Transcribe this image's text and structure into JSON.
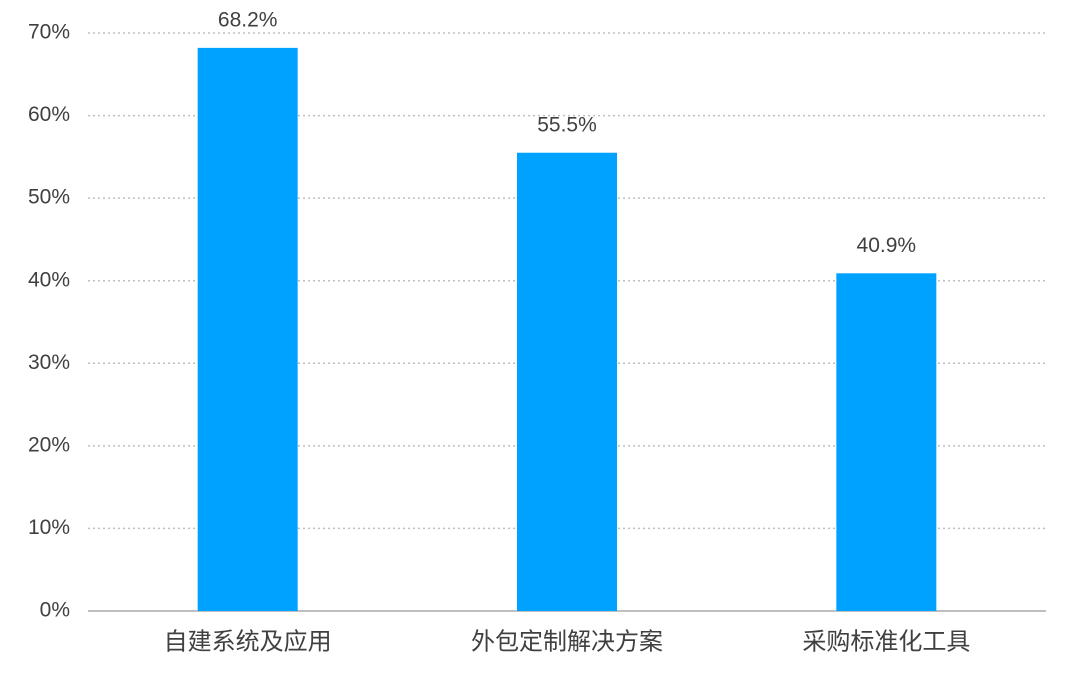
{
  "chart_data": {
    "type": "bar",
    "categories": [
      "自建系统及应用",
      "外包定制解决方案",
      "采购标准化工具"
    ],
    "values": [
      68.2,
      55.5,
      40.9
    ],
    "value_labels": [
      "68.2%",
      "55.5%",
      "40.9%"
    ],
    "color": "#00a2ff",
    "ylim": [
      0,
      70
    ],
    "yticks": [
      {
        "value": 0,
        "label": "0%"
      },
      {
        "value": 10,
        "label": "10%"
      },
      {
        "value": 20,
        "label": "20%"
      },
      {
        "value": 30,
        "label": "30%"
      },
      {
        "value": 40,
        "label": "40%"
      },
      {
        "value": 50,
        "label": "50%"
      },
      {
        "value": 60,
        "label": "60%"
      },
      {
        "value": 70,
        "label": "70%"
      }
    ],
    "grid": true
  }
}
